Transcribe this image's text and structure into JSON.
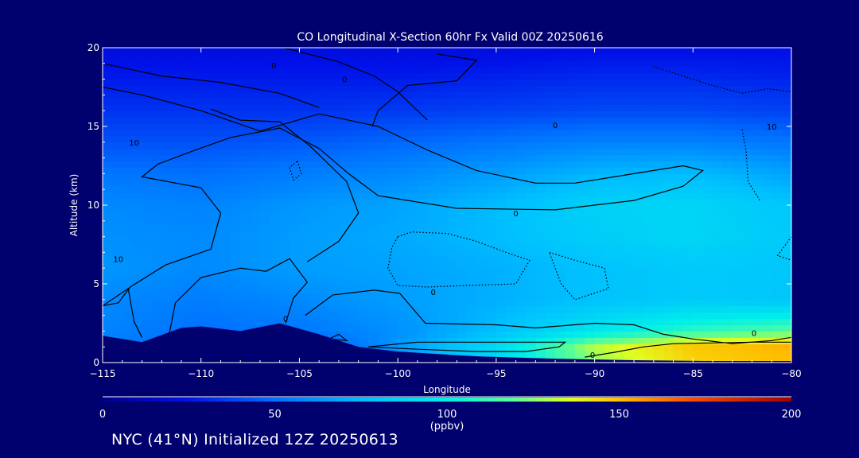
{
  "chart_data": {
    "type": "heatmap",
    "title": "CO Longitudinal X-Section 60hr  Fx Valid 00Z 20250616",
    "xlabel": "Longitude",
    "ylabel": "Altitude (km)",
    "xlim": [
      -115,
      -80
    ],
    "ylim": [
      0,
      20
    ],
    "x_ticks": [
      -115,
      -110,
      -105,
      -100,
      -95,
      -90,
      -85,
      -80
    ],
    "x_tick_labels": [
      "−115",
      "−110",
      "−105",
      "−100",
      "−95",
      "−90",
      "−85",
      "−80"
    ],
    "y_ticks": [
      0,
      5,
      10,
      15,
      20
    ],
    "y_tick_labels": [
      "0",
      "5",
      "10",
      "15",
      "20"
    ],
    "field": {
      "x": [
        -115,
        -110,
        -105,
        -100,
        -95,
        -90,
        -85,
        -80
      ],
      "y": [
        0,
        1,
        2,
        4,
        6,
        8,
        10,
        12,
        14,
        16,
        18,
        20
      ],
      "values": [
        [
          55,
          40,
          30,
          60,
          85,
          125,
          145,
          150
        ],
        [
          55,
          48,
          40,
          62,
          88,
          130,
          148,
          152
        ],
        [
          56,
          50,
          52,
          60,
          75,
          95,
          110,
          118
        ],
        [
          58,
          54,
          58,
          64,
          70,
          76,
          80,
          78
        ],
        [
          62,
          58,
          64,
          66,
          70,
          76,
          80,
          78
        ],
        [
          60,
          58,
          64,
          68,
          74,
          82,
          86,
          80
        ],
        [
          58,
          56,
          62,
          66,
          74,
          84,
          86,
          78
        ],
        [
          52,
          50,
          54,
          58,
          64,
          72,
          74,
          66
        ],
        [
          42,
          42,
          44,
          48,
          52,
          56,
          56,
          52
        ],
        [
          34,
          34,
          34,
          36,
          38,
          40,
          40,
          38
        ],
        [
          28,
          28,
          28,
          28,
          30,
          32,
          32,
          30
        ],
        [
          22,
          22,
          22,
          22,
          22,
          24,
          24,
          24
        ]
      ],
      "units": "ppbv"
    },
    "terrain_km": {
      "x": [
        -115,
        -113,
        -111,
        -110,
        -108,
        -106,
        -104,
        -102,
        -100,
        -96,
        -92,
        -88,
        -84,
        -80
      ],
      "y": [
        1.7,
        1.3,
        2.2,
        2.3,
        2.0,
        2.5,
        1.8,
        1.0,
        0.7,
        0.4,
        0.25,
        0.15,
        0.1,
        0.1
      ]
    },
    "contour_labels": [
      "0",
      "0",
      "0",
      "0",
      "0",
      "10",
      "10",
      "10",
      "0",
      "0",
      "0"
    ],
    "colorbar": {
      "min": 0,
      "max": 200,
      "tick_values": [
        0,
        50,
        100,
        150,
        200
      ],
      "tick_labels": [
        "0",
        "50",
        "100",
        "150",
        "200"
      ],
      "units": "(ppbv)"
    }
  },
  "footer": {
    "caption": "NYC (41°N) Initialized 12Z 20250613"
  }
}
